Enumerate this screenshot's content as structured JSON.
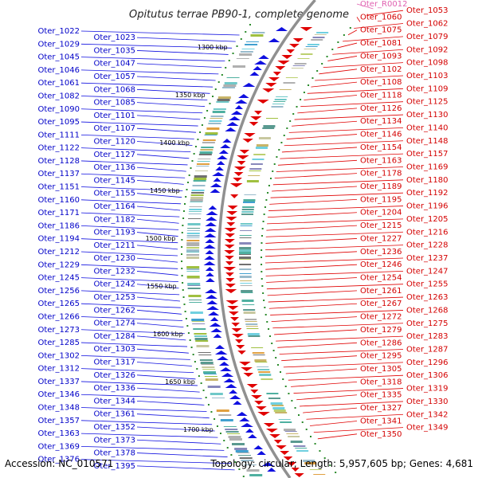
{
  "title": "Opitutus terrae PB90-1, complete genome",
  "footer": {
    "accession": "Accession: NC_010571",
    "summary": "Topology: circular; Length: 5,957,605 bp; Genes: 4,681"
  },
  "colors": {
    "plus_strand": "#1010e0",
    "minus_strand": "#e00000",
    "rna_marker": "#e060b0",
    "backbone": "#909090",
    "tick": "#2a8a2a"
  },
  "positions": [
    "1300 kbp",
    "1350 kbp",
    "1400 kbp",
    "1450 kbp",
    "1500 kbp",
    "1550 kbp",
    "1600 kbp",
    "1650 kbp",
    "1700 kbp"
  ],
  "left_labels": [
    "Oter_1022",
    "Oter_1023",
    "Oter_1029",
    "Oter_1035",
    "Oter_1045",
    "Oter_1047",
    "Oter_1046",
    "Oter_1057",
    "Oter_1061",
    "Oter_1068",
    "Oter_1082",
    "Oter_1085",
    "Oter_1090",
    "Oter_1101",
    "Oter_1095",
    "Oter_1107",
    "Oter_1111",
    "Oter_1120",
    "Oter_1122",
    "Oter_1127",
    "Oter_1128",
    "Oter_1136",
    "Oter_1137",
    "Oter_1145",
    "Oter_1151",
    "Oter_1155",
    "Oter_1160",
    "Oter_1164",
    "Oter_1171",
    "Oter_1182",
    "Oter_1186",
    "Oter_1193",
    "Oter_1194",
    "Oter_1211",
    "Oter_1212",
    "Oter_1230",
    "Oter_1229",
    "Oter_1232",
    "Oter_1245",
    "Oter_1242",
    "Oter_1256",
    "Oter_1253",
    "Oter_1265",
    "Oter_1262",
    "Oter_1266",
    "Oter_1274",
    "Oter_1273",
    "Oter_1284",
    "Oter_1285",
    "Oter_1303",
    "Oter_1302",
    "Oter_1317",
    "Oter_1312",
    "Oter_1326",
    "Oter_1337",
    "Oter_1336",
    "Oter_1346",
    "Oter_1344",
    "Oter_1348",
    "Oter_1361",
    "Oter_1357",
    "Oter_1352",
    "Oter_1363",
    "Oter_1373",
    "Oter_1369",
    "Oter_1378",
    "Oter_1376",
    "Oter_1395"
  ],
  "right_labels": [
    "Oter_R0012",
    "Oter_1053",
    "Oter_1060",
    "Oter_1062",
    "Oter_1075",
    "Oter_1079",
    "Oter_1081",
    "Oter_1092",
    "Oter_1093",
    "Oter_1098",
    "Oter_1102",
    "Oter_1103",
    "Oter_1108",
    "Oter_1109",
    "Oter_1118",
    "Oter_1125",
    "Oter_1126",
    "Oter_1130",
    "Oter_1134",
    "Oter_1140",
    "Oter_1146",
    "Oter_1148",
    "Oter_1154",
    "Oter_1157",
    "Oter_1163",
    "Oter_1169",
    "Oter_1178",
    "Oter_1180",
    "Oter_1189",
    "Oter_1192",
    "Oter_1195",
    "Oter_1196",
    "Oter_1204",
    "Oter_1205",
    "Oter_1215",
    "Oter_1216",
    "Oter_1227",
    "Oter_1228",
    "Oter_1236",
    "Oter_1237",
    "Oter_1246",
    "Oter_1247",
    "Oter_1254",
    "Oter_1255",
    "Oter_1261",
    "Oter_1263",
    "Oter_1267",
    "Oter_1268",
    "Oter_1272",
    "Oter_1275",
    "Oter_1279",
    "Oter_1283",
    "Oter_1286",
    "Oter_1287",
    "Oter_1295",
    "Oter_1296",
    "Oter_1305",
    "Oter_1306",
    "Oter_1318",
    "Oter_1319",
    "Oter_1335",
    "Oter_1330",
    "Oter_1327",
    "Oter_1342",
    "Oter_1341",
    "Oter_1349",
    "Oter_1350"
  ]
}
